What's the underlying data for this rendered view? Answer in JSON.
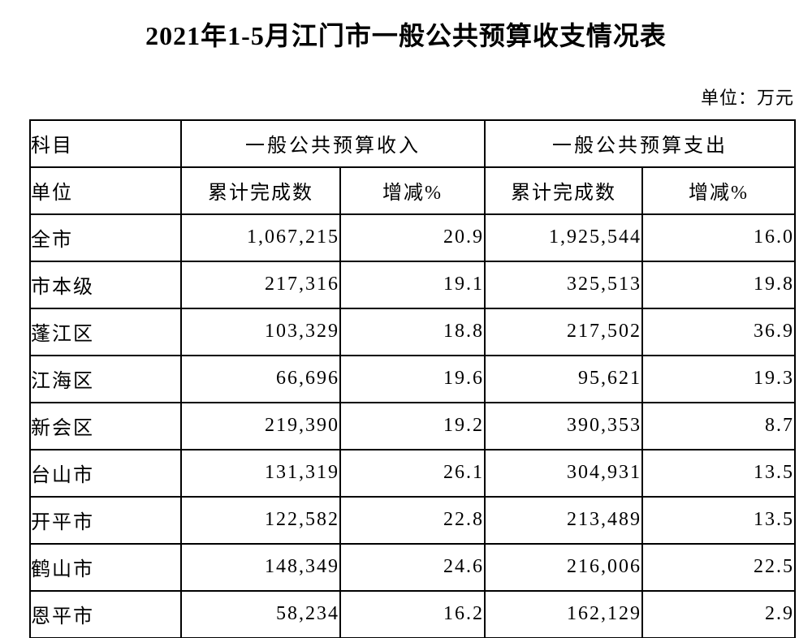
{
  "page": {
    "title": "2021年1-5月江门市一般公共预算收支情况表",
    "unit_label": "单位：万元"
  },
  "colors": {
    "text": "#000000",
    "border": "#000000",
    "background": "#ffffff"
  },
  "table": {
    "header": {
      "subject_label": "科目",
      "unit_label": "单位",
      "revenue_group_label": "一般公共预算收入",
      "expenditure_group_label": "一般公共预算支出",
      "revenue_cumulative_label": "累计完成数",
      "revenue_change_label": "增减%",
      "expenditure_cumulative_label": "累计完成数",
      "expenditure_change_label": "增减%"
    },
    "rows": [
      {
        "region": "全市",
        "revenue_cumulative": "1,067,215",
        "revenue_change": "20.9",
        "expenditure_cumulative": "1,925,544",
        "expenditure_change": "16.0"
      },
      {
        "region": "市本级",
        "revenue_cumulative": "217,316",
        "revenue_change": "19.1",
        "expenditure_cumulative": "325,513",
        "expenditure_change": "19.8"
      },
      {
        "region": "蓬江区",
        "revenue_cumulative": "103,329",
        "revenue_change": "18.8",
        "expenditure_cumulative": "217,502",
        "expenditure_change": "36.9"
      },
      {
        "region": "江海区",
        "revenue_cumulative": "66,696",
        "revenue_change": "19.6",
        "expenditure_cumulative": "95,621",
        "expenditure_change": "19.3"
      },
      {
        "region": "新会区",
        "revenue_cumulative": "219,390",
        "revenue_change": "19.2",
        "expenditure_cumulative": "390,353",
        "expenditure_change": "8.7"
      },
      {
        "region": "台山市",
        "revenue_cumulative": "131,319",
        "revenue_change": "26.1",
        "expenditure_cumulative": "304,931",
        "expenditure_change": "13.5"
      },
      {
        "region": "开平市",
        "revenue_cumulative": "122,582",
        "revenue_change": "22.8",
        "expenditure_cumulative": "213,489",
        "expenditure_change": "13.5"
      },
      {
        "region": "鹤山市",
        "revenue_cumulative": "148,349",
        "revenue_change": "24.6",
        "expenditure_cumulative": "216,006",
        "expenditure_change": "22.5"
      },
      {
        "region": "恩平市",
        "revenue_cumulative": "58,234",
        "revenue_change": "16.2",
        "expenditure_cumulative": "162,129",
        "expenditure_change": "2.9"
      }
    ]
  }
}
